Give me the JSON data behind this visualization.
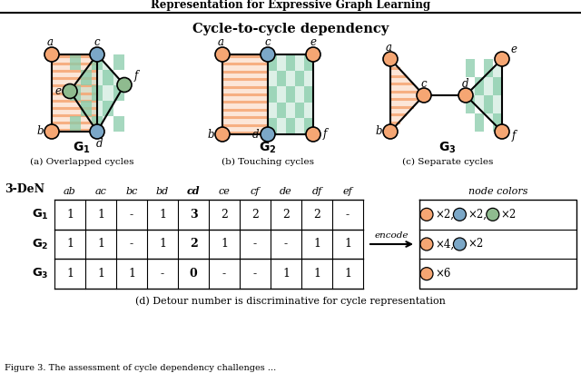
{
  "title": "Cycle-to-cycle dependency",
  "header_title": "Representation for Expressive Graph Learning",
  "orange": "#F5A673",
  "blue": "#7BA7C7",
  "green": "#8FBB8F",
  "checker_green": "#88CCAA",
  "stripe_orange": "#F5A673",
  "g1_caption": "(a) Overlapped cycles",
  "g2_caption": "(b) Touching cycles",
  "g3_caption": "(c) Separate cycles",
  "bottom_caption": "(d) Detour number is discriminative for cycle representation",
  "table_header": [
    "ab",
    "ac",
    "bc",
    "bd",
    "cd",
    "ce",
    "cf",
    "de",
    "df",
    "ef"
  ],
  "g1_row": [
    "1",
    "1",
    "-",
    "1",
    "3",
    "2",
    "2",
    "2",
    "2",
    "-"
  ],
  "g2_row": [
    "1",
    "1",
    "-",
    "1",
    "2",
    "1",
    "-",
    "-",
    "1",
    "1"
  ],
  "g3_row": [
    "1",
    "1",
    "1",
    "-",
    "0",
    "-",
    "-",
    "1",
    "1",
    "1"
  ]
}
